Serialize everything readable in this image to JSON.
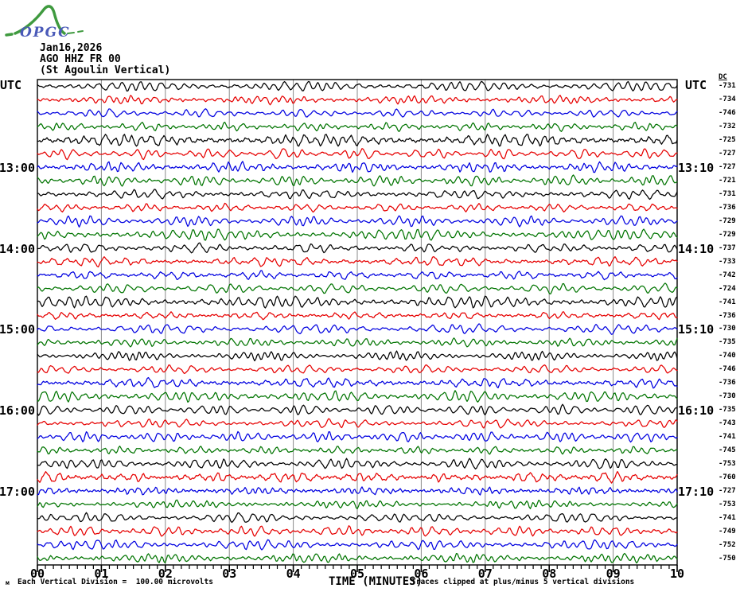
{
  "logo": {
    "text": "OPGC",
    "text_color": "#4a5ab8",
    "curve_color": "#3f9a3f"
  },
  "header": {
    "date": "Jan16,2026",
    "station": "AGO HHZ FR 00",
    "subtitle": "(St Agoulin Vertical)"
  },
  "axis": {
    "utc_left": "UTC",
    "utc_right": "UTC",
    "dc_label": "DC",
    "x_title": "TIME (MINUTES)",
    "x_ticks": [
      "00",
      "01",
      "02",
      "03",
      "04",
      "05",
      "06",
      "07",
      "08",
      "09",
      "10"
    ],
    "left_time_labels": [
      {
        "row": 7,
        "label": "13:00"
      },
      {
        "row": 13,
        "label": "14:00"
      },
      {
        "row": 19,
        "label": "15:00"
      },
      {
        "row": 25,
        "label": "16:00"
      },
      {
        "row": 31,
        "label": "17:00"
      }
    ],
    "right_time_labels": [
      {
        "row": 7,
        "label": "13:10"
      },
      {
        "row": 13,
        "label": "14:10"
      },
      {
        "row": 19,
        "label": "15:10"
      },
      {
        "row": 25,
        "label": "16:10"
      },
      {
        "row": 31,
        "label": "17:10"
      }
    ]
  },
  "footer": {
    "micro_mark": "м",
    "division_note": "Each Vertical Division =  100.00 microvolts",
    "clip_note": "Traces clipped at plus/minus 5 vertical divisions"
  },
  "chart_data": {
    "type": "line",
    "subtype": "helicorder-seismogram",
    "title": "AGO HHZ FR 00 (St Agoulin Vertical)",
    "date": "Jan16,2026",
    "xlabel": "TIME (MINUTES)",
    "x_range_minutes": [
      0,
      10
    ],
    "minutes_per_row": 10,
    "minor_ticks_per_minute": 8,
    "rows_count": 36,
    "time_span_utc": "12:00 to 18:00",
    "vertical_division_microvolts": 100.0,
    "clip_divisions": 5,
    "grid": "vertical gray lines at each minute",
    "grid_color": "#8a8a8a",
    "trace_color_cycle": [
      "#000000",
      "#e60000",
      "#0000e0",
      "#007400"
    ],
    "rows": [
      {
        "utc_start": "12:00",
        "utc_end": "12:10",
        "color": "black",
        "dc_microvolts": -731
      },
      {
        "utc_start": "12:10",
        "utc_end": "12:20",
        "color": "red",
        "dc_microvolts": -734
      },
      {
        "utc_start": "12:20",
        "utc_end": "12:30",
        "color": "blue",
        "dc_microvolts": -746
      },
      {
        "utc_start": "12:30",
        "utc_end": "12:40",
        "color": "green",
        "dc_microvolts": -732
      },
      {
        "utc_start": "12:40",
        "utc_end": "12:50",
        "color": "black",
        "dc_microvolts": -725
      },
      {
        "utc_start": "12:50",
        "utc_end": "13:00",
        "color": "red",
        "dc_microvolts": -727
      },
      {
        "utc_start": "13:00",
        "utc_end": "13:10",
        "color": "blue",
        "dc_microvolts": -727
      },
      {
        "utc_start": "13:10",
        "utc_end": "13:20",
        "color": "green",
        "dc_microvolts": -721
      },
      {
        "utc_start": "13:20",
        "utc_end": "13:30",
        "color": "black",
        "dc_microvolts": -731
      },
      {
        "utc_start": "13:30",
        "utc_end": "13:40",
        "color": "red",
        "dc_microvolts": -736
      },
      {
        "utc_start": "13:40",
        "utc_end": "13:50",
        "color": "blue",
        "dc_microvolts": -729
      },
      {
        "utc_start": "13:50",
        "utc_end": "14:00",
        "color": "green",
        "dc_microvolts": -729
      },
      {
        "utc_start": "14:00",
        "utc_end": "14:10",
        "color": "black",
        "dc_microvolts": -737
      },
      {
        "utc_start": "14:10",
        "utc_end": "14:20",
        "color": "red",
        "dc_microvolts": -733
      },
      {
        "utc_start": "14:20",
        "utc_end": "14:30",
        "color": "blue",
        "dc_microvolts": -742
      },
      {
        "utc_start": "14:30",
        "utc_end": "14:40",
        "color": "green",
        "dc_microvolts": -724
      },
      {
        "utc_start": "14:40",
        "utc_end": "14:50",
        "color": "black",
        "dc_microvolts": -741
      },
      {
        "utc_start": "14:50",
        "utc_end": "15:00",
        "color": "red",
        "dc_microvolts": -736
      },
      {
        "utc_start": "15:00",
        "utc_end": "15:10",
        "color": "blue",
        "dc_microvolts": -730
      },
      {
        "utc_start": "15:10",
        "utc_end": "15:20",
        "color": "green",
        "dc_microvolts": -735
      },
      {
        "utc_start": "15:20",
        "utc_end": "15:30",
        "color": "black",
        "dc_microvolts": -740
      },
      {
        "utc_start": "15:30",
        "utc_end": "15:40",
        "color": "red",
        "dc_microvolts": -746
      },
      {
        "utc_start": "15:40",
        "utc_end": "15:50",
        "color": "blue",
        "dc_microvolts": -736
      },
      {
        "utc_start": "15:50",
        "utc_end": "16:00",
        "color": "green",
        "dc_microvolts": -730
      },
      {
        "utc_start": "16:00",
        "utc_end": "16:10",
        "color": "black",
        "dc_microvolts": -735
      },
      {
        "utc_start": "16:10",
        "utc_end": "16:20",
        "color": "red",
        "dc_microvolts": -743
      },
      {
        "utc_start": "16:20",
        "utc_end": "16:30",
        "color": "blue",
        "dc_microvolts": -741
      },
      {
        "utc_start": "16:30",
        "utc_end": "16:40",
        "color": "green",
        "dc_microvolts": -745
      },
      {
        "utc_start": "16:40",
        "utc_end": "16:50",
        "color": "black",
        "dc_microvolts": -753
      },
      {
        "utc_start": "16:50",
        "utc_end": "17:00",
        "color": "red",
        "dc_microvolts": -760
      },
      {
        "utc_start": "17:00",
        "utc_end": "17:10",
        "color": "blue",
        "dc_microvolts": -727
      },
      {
        "utc_start": "17:10",
        "utc_end": "17:20",
        "color": "green",
        "dc_microvolts": -753
      },
      {
        "utc_start": "17:20",
        "utc_end": "17:30",
        "color": "black",
        "dc_microvolts": -741
      },
      {
        "utc_start": "17:30",
        "utc_end": "17:40",
        "color": "red",
        "dc_microvolts": -749
      },
      {
        "utc_start": "17:40",
        "utc_end": "17:50",
        "color": "blue",
        "dc_microvolts": -752
      },
      {
        "utc_start": "17:50",
        "utc_end": "18:00",
        "color": "green",
        "dc_microvolts": -750
      }
    ]
  }
}
